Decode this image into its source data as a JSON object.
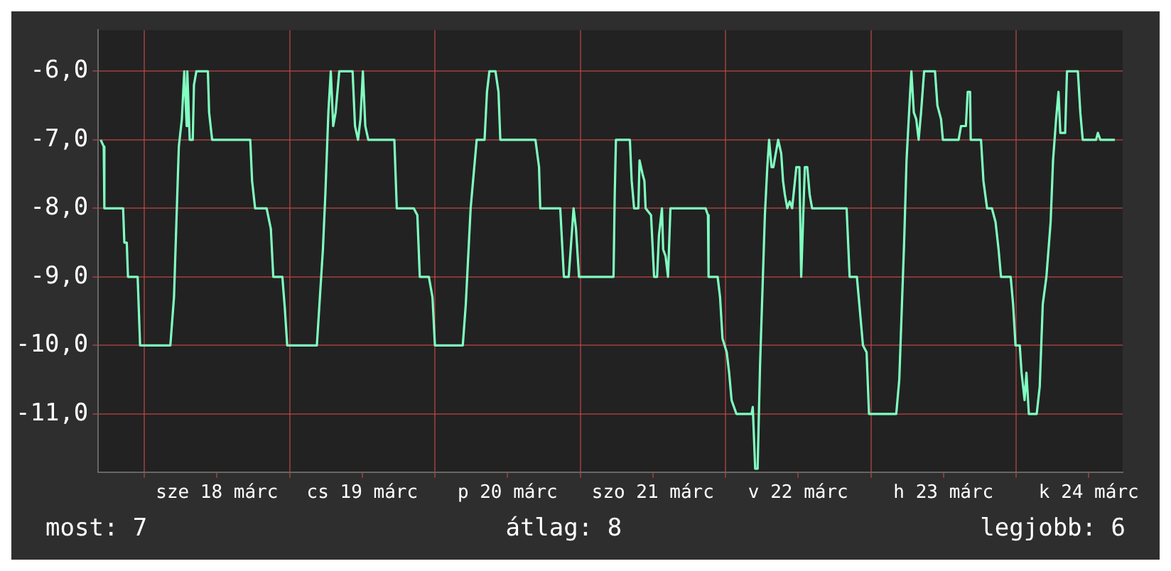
{
  "chart_data": {
    "type": "line",
    "x": [
      "--03-17T16:48",
      "--03-17T17:18",
      "--03-17T17:24",
      "--03-17T18:18",
      "--03-17T20:30",
      "--03-17T20:42",
      "--03-17T21:06",
      "--03-17T21:18",
      "--03-17T22:54",
      "--03-17T23:18",
      "--03-18T04:18",
      "--03-18T04:54",
      "--03-18T05:18",
      "--03-18T05:42",
      "--03-18T06:12",
      "--03-18T06:36",
      "--03-18T07:00",
      "--03-18T07:06",
      "--03-18T07:30",
      "--03-18T08:00",
      "--03-18T08:12",
      "--03-18T08:36",
      "--03-18T10:30",
      "--03-18T10:42",
      "--03-18T11:12",
      "--03-18T17:30",
      "--03-18T17:48",
      "--03-18T18:18",
      "--03-18T20:12",
      "--03-18T20:54",
      "--03-18T21:18",
      "--03-18T22:48",
      "--03-18T23:12",
      "--03-18T23:36",
      "--03-19T04:30",
      "--03-19T05:00",
      "--03-19T05:30",
      "--03-19T05:54",
      "--03-19T06:24",
      "--03-19T06:48",
      "--03-19T07:12",
      "--03-19T07:36",
      "--03-19T08:12",
      "--03-19T10:24",
      "--03-19T10:48",
      "--03-19T11:18",
      "--03-19T11:42",
      "--03-19T12:06",
      "--03-19T12:30",
      "--03-19T13:00",
      "--03-19T17:18",
      "--03-19T17:42",
      "--03-19T20:30",
      "--03-19T21:06",
      "--03-19T21:30",
      "--03-19T23:00",
      "--03-19T23:36",
      "--03-20T00:00",
      "--03-20T04:36",
      "--03-20T05:06",
      "--03-20T05:54",
      "--03-20T06:42",
      "--03-20T06:54",
      "--03-20T08:12",
      "--03-20T08:36",
      "--03-20T09:00",
      "--03-20T10:00",
      "--03-20T10:30",
      "--03-20T10:48",
      "--03-20T16:36",
      "--03-20T17:12",
      "--03-20T17:24",
      "--03-20T20:42",
      "--03-20T21:18",
      "--03-20T22:06",
      "--03-20T22:30",
      "--03-20T22:54",
      "--03-20T23:18",
      "--03-20T23:48",
      "--03-21T05:30",
      "--03-21T05:42",
      "--03-21T05:54",
      "--03-21T08:12",
      "--03-21T08:30",
      "--03-21T08:54",
      "--03-21T09:36",
      "--03-21T09:48",
      "--03-21T10:18",
      "--03-21T10:36",
      "--03-21T10:48",
      "--03-21T11:42",
      "--03-21T12:12",
      "--03-21T12:42",
      "--03-21T13:00",
      "--03-21T13:30",
      "--03-21T13:42",
      "--03-21T14:06",
      "--03-21T14:30",
      "--03-21T14:54",
      "--03-21T15:18",
      "--03-21T20:42",
      "--03-21T21:06",
      "--03-21T21:12",
      "--03-21T22:42",
      "--03-21T23:06",
      "--03-21T23:30",
      "--03-22T00:12",
      "--03-22T00:36",
      "--03-22T01:00",
      "--03-22T01:48",
      "--03-22T04:18",
      "--03-22T04:30",
      "--03-22T04:54",
      "--03-22T05:18",
      "--03-22T05:42",
      "--03-22T06:06",
      "--03-22T06:30",
      "--03-22T06:54",
      "--03-22T07:12",
      "--03-22T07:36",
      "--03-22T07:54",
      "--03-22T08:18",
      "--03-22T08:42",
      "--03-22T09:12",
      "--03-22T09:30",
      "--03-22T09:48",
      "--03-22T10:12",
      "--03-22T10:36",
      "--03-22T11:00",
      "--03-22T11:42",
      "--03-22T12:12",
      "--03-22T12:30",
      "--03-22T13:06",
      "--03-22T13:30",
      "--03-22T13:54",
      "--03-22T14:18",
      "--03-22T20:00",
      "--03-22T20:30",
      "--03-22T21:42",
      "--03-22T22:18",
      "--03-22T22:42",
      "--03-22T23:18",
      "--03-22T23:42",
      "--03-23T04:12",
      "--03-23T04:42",
      "--03-23T05:06",
      "--03-23T05:30",
      "--03-23T05:54",
      "--03-23T06:30",
      "--03-23T06:42",
      "--03-23T07:06",
      "--03-23T07:30",
      "--03-23T07:54",
      "--03-23T08:18",
      "--03-23T08:48",
      "--03-23T10:36",
      "--03-23T11:00",
      "--03-23T11:36",
      "--03-23T11:54",
      "--03-23T14:30",
      "--03-23T14:54",
      "--03-23T15:42",
      "--03-23T16:00",
      "--03-23T16:24",
      "--03-23T16:30",
      "--03-23T18:12",
      "--03-23T18:36",
      "--03-23T19:12",
      "--03-23T20:00",
      "--03-23T20:36",
      "--03-23T21:06",
      "--03-23T21:30",
      "--03-23T23:06",
      "--03-23T23:30",
      "--03-23T23:54",
      "--03-24T00:36",
      "--03-24T00:54",
      "--03-24T01:24",
      "--03-24T01:42",
      "--03-24T02:06",
      "--03-24T03:24",
      "--03-24T03:54",
      "--03-24T04:24",
      "--03-24T05:00",
      "--03-24T05:42",
      "--03-24T06:06",
      "--03-24T06:36",
      "--03-24T07:00",
      "--03-24T07:18",
      "--03-24T07:30",
      "--03-24T08:06",
      "--03-24T08:24",
      "--03-24T10:12",
      "--03-24T10:36",
      "--03-24T11:00",
      "--03-24T13:12",
      "--03-24T13:30",
      "--03-24T13:54",
      "--03-24T16:18"
    ],
    "series": [
      {
        "color": "#80ffc0",
        "values": [
          -7,
          -7.1,
          -8,
          -8,
          -8,
          -8.5,
          -8.5,
          -9,
          -9,
          -10,
          -10,
          -9.3,
          -8.2,
          -7.1,
          -6.7,
          -6,
          -6.8,
          -6,
          -7,
          -7,
          -6.2,
          -6,
          -6,
          -6.6,
          -7,
          -7,
          -7.6,
          -8,
          -8,
          -8.3,
          -9,
          -9,
          -9.45,
          -10,
          -10,
          -9.3,
          -8.6,
          -7.8,
          -6.6,
          -6,
          -6.8,
          -6.6,
          -6,
          -6,
          -6.8,
          -7,
          -6.7,
          -6,
          -6.8,
          -7,
          -7,
          -8,
          -8,
          -8.1,
          -9,
          -9,
          -9.3,
          -10,
          -10,
          -9.4,
          -8,
          -7.2,
          -7,
          -7,
          -6.3,
          -6,
          -6,
          -6.3,
          -7,
          -7,
          -7.4,
          -8,
          -8,
          -9,
          -9,
          -8.5,
          -8,
          -8.3,
          -9,
          -9,
          -7.8,
          -7,
          -7,
          -7.6,
          -8,
          -8,
          -7.3,
          -7.5,
          -7.6,
          -8,
          -8.1,
          -9,
          -9,
          -8.4,
          -8,
          -8.6,
          -8.7,
          -9,
          -8,
          -8,
          -8,
          -8.1,
          -9,
          -9,
          -9.3,
          -9.9,
          -10.1,
          -10.4,
          -10.8,
          -11,
          -11,
          -10.9,
          -11.8,
          -11.8,
          -10.3,
          -9.2,
          -8.1,
          -7.4,
          -7,
          -7.4,
          -7.4,
          -7.2,
          -7,
          -7.2,
          -7.6,
          -7.8,
          -8,
          -7.9,
          -8,
          -7.4,
          -7.4,
          -9,
          -7.4,
          -7.4,
          -7.8,
          -8,
          -8,
          -9,
          -9,
          -9.6,
          -10,
          -10.1,
          -11,
          -11,
          -10.5,
          -9.5,
          -8.5,
          -7.3,
          -6.3,
          -6,
          -6.6,
          -6.7,
          -7,
          -6.6,
          -6,
          -6,
          -6.5,
          -6.7,
          -7,
          -7,
          -6.8,
          -6.8,
          -6.3,
          -6.3,
          -7,
          -7,
          -7.6,
          -8,
          -8,
          -8.2,
          -8.6,
          -9,
          -9,
          -9.4,
          -10,
          -10,
          -10.4,
          -10.8,
          -10.4,
          -11,
          -11,
          -10.6,
          -9.4,
          -9,
          -8.2,
          -7.3,
          -6.7,
          -6.3,
          -6.9,
          -6.9,
          -6.9,
          -6,
          -6,
          -6.6,
          -7,
          -7,
          -6.9,
          -7,
          -7
        ]
      }
    ],
    "xlim": [
      "--03-17T16:24",
      "--03-24T17:36"
    ],
    "xticks": [
      {
        "value": "--03-18T00:00",
        "label": null
      },
      {
        "value": "--03-18T12:00",
        "label": "sze 18 márc"
      },
      {
        "value": "--03-19T00:00",
        "label": null
      },
      {
        "value": "--03-19T12:00",
        "label": "cs 19 márc"
      },
      {
        "value": "--03-20T00:00",
        "label": null
      },
      {
        "value": "--03-20T12:00",
        "label": "p 20 márc"
      },
      {
        "value": "--03-21T00:00",
        "label": null
      },
      {
        "value": "--03-21T12:00",
        "label": "szo 21 márc"
      },
      {
        "value": "--03-22T00:00",
        "label": null
      },
      {
        "value": "--03-22T12:00",
        "label": "v 22 márc"
      },
      {
        "value": "--03-23T00:00",
        "label": null
      },
      {
        "value": "--03-23T12:00",
        "label": "h 23 márc"
      },
      {
        "value": "--03-24T00:00",
        "label": null
      },
      {
        "value": "--03-24T12:00",
        "label": "k 24 márc"
      }
    ],
    "ylim": [
      -11.85,
      -5.4
    ],
    "yticks": [
      {
        "value": -11,
        "label": "-11,0"
      },
      {
        "value": -10,
        "label": "-10,0"
      },
      {
        "value": -9,
        "label": "-9,0"
      },
      {
        "value": -8,
        "label": "-8,0"
      },
      {
        "value": -7,
        "label": "-7,0"
      },
      {
        "value": -6,
        "label": "-6,0"
      }
    ],
    "grid": true,
    "legend": false,
    "marker": "none",
    "line_style": "solid",
    "annotations": [
      "most: 7",
      "átlag: 8",
      "legjobb: 6"
    ]
  }
}
